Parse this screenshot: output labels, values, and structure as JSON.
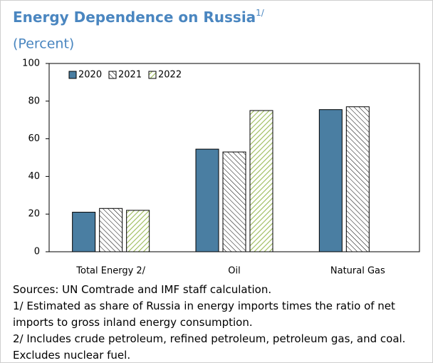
{
  "chart_data": {
    "type": "bar",
    "title": "Energy Dependence on Russia",
    "title_superscript": "1/",
    "subtitle": "(Percent)",
    "categories": [
      "Total Energy 2/",
      "Oil",
      "Natural Gas"
    ],
    "series": [
      {
        "name": "2020",
        "color": "#4a7ea2",
        "pattern": "solid",
        "values": [
          21,
          54.5,
          75.5
        ]
      },
      {
        "name": "2021",
        "color": "#000000",
        "pattern": "hatch-back",
        "values": [
          23,
          53,
          77
        ]
      },
      {
        "name": "2022",
        "color": "#9bbb59",
        "pattern": "hatch-forward",
        "values": [
          22,
          75,
          null
        ]
      }
    ],
    "ylim": [
      0,
      100
    ],
    "yticks": [
      0,
      20,
      40,
      60,
      80,
      100
    ],
    "grid": false,
    "notes": [
      "Sources: UN Comtrade and IMF staff calculation.",
      "1/ Estimated as share of Russia in energy imports times the ratio of net imports to gross inland energy consumption.",
      "2/ Includes crude petroleum, refined petroleum, petroleum gas, and coal. Excludes nuclear fuel."
    ]
  }
}
